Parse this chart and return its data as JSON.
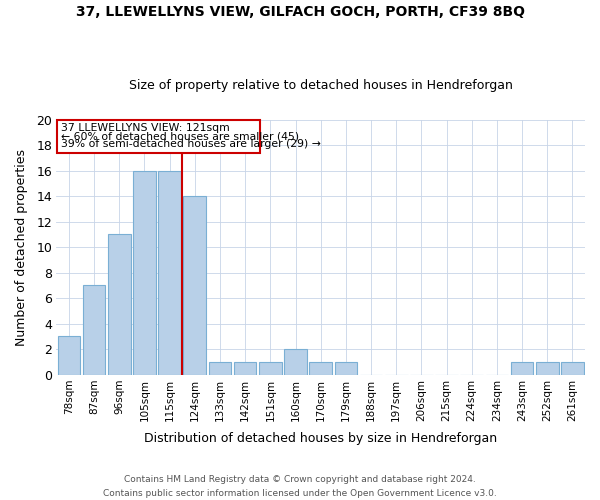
{
  "title": "37, LLEWELLYNS VIEW, GILFACH GOCH, PORTH, CF39 8BQ",
  "subtitle": "Size of property relative to detached houses in Hendreforgan",
  "xlabel": "Distribution of detached houses by size in Hendreforgan",
  "ylabel": "Number of detached properties",
  "bins": [
    "78sqm",
    "87sqm",
    "96sqm",
    "105sqm",
    "115sqm",
    "124sqm",
    "133sqm",
    "142sqm",
    "151sqm",
    "160sqm",
    "170sqm",
    "179sqm",
    "188sqm",
    "197sqm",
    "206sqm",
    "215sqm",
    "224sqm",
    "234sqm",
    "243sqm",
    "252sqm",
    "261sqm"
  ],
  "values": [
    3,
    7,
    11,
    16,
    16,
    14,
    1,
    1,
    1,
    2,
    1,
    1,
    0,
    0,
    0,
    0,
    0,
    0,
    1,
    1,
    1
  ],
  "bar_color": "#b8d0e8",
  "bar_edge_color": "#7aafd4",
  "ylim": [
    0,
    20
  ],
  "yticks": [
    0,
    2,
    4,
    6,
    8,
    10,
    12,
    14,
    16,
    18,
    20
  ],
  "annotation_line1": "37 LLEWELLYNS VIEW: 121sqm",
  "annotation_line2": "← 60% of detached houses are smaller (45)",
  "annotation_line3": "39% of semi-detached houses are larger (29) →",
  "vline_color": "#cc0000",
  "annotation_box_color": "#cc0000",
  "footnote1": "Contains HM Land Registry data © Crown copyright and database right 2024.",
  "footnote2": "Contains public sector information licensed under the Open Government Licence v3.0."
}
